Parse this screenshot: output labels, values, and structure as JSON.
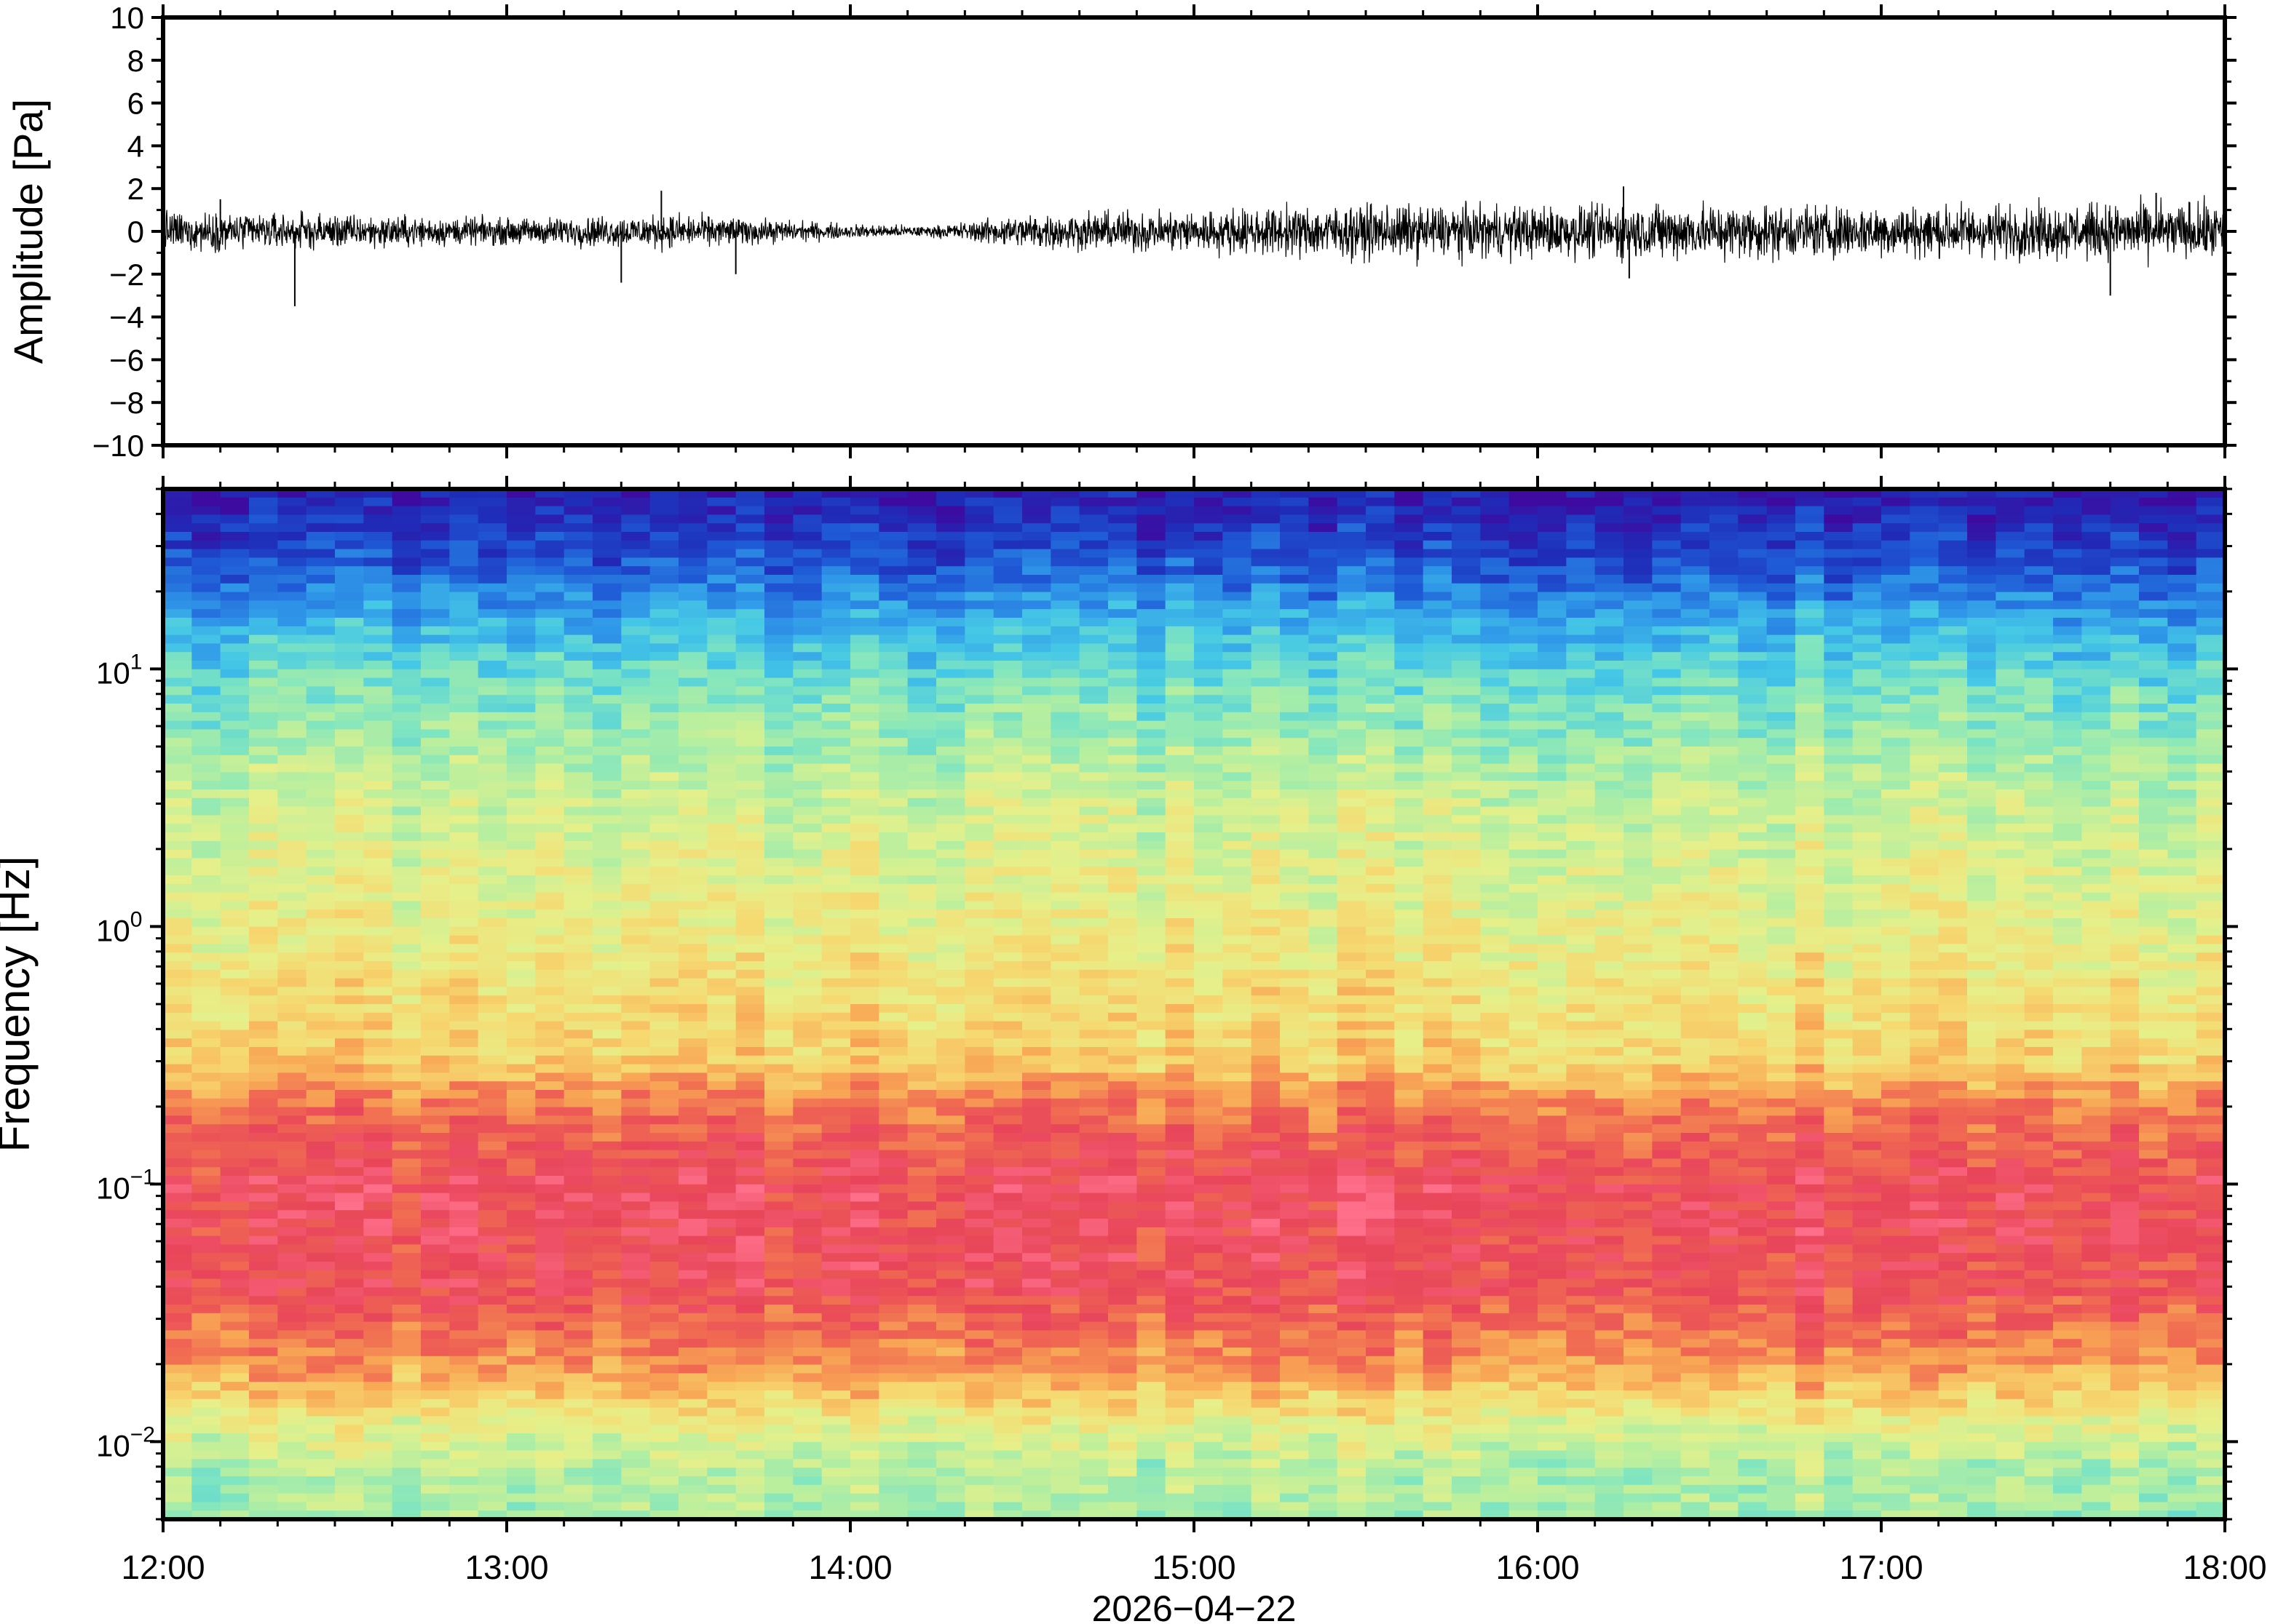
{
  "chart_data": [
    {
      "type": "line",
      "ylabel": "Amplitude [Pa]",
      "ylim": [
        -10,
        10
      ],
      "yticks": [
        -10,
        -8,
        -6,
        -4,
        -2,
        0,
        2,
        4,
        6,
        8,
        10
      ],
      "ytick_labels": [
        "−10",
        "−8",
        "−6",
        "−4",
        "−2",
        "0",
        "2",
        "4",
        "6",
        "8",
        "10"
      ],
      "xlim": [
        "12:00",
        "18:00"
      ],
      "xticks": [
        "12:00",
        "13:00",
        "14:00",
        "15:00",
        "16:00",
        "17:00",
        "18:00"
      ],
      "noise_envelope": {
        "x": [
          "12:00",
          "12:30",
          "13:00",
          "13:30",
          "14:00",
          "14:15",
          "14:30",
          "15:00",
          "15:30",
          "16:00",
          "16:30",
          "17:00",
          "17:30",
          "18:00"
        ],
        "y": [
          0.7,
          0.6,
          0.45,
          0.6,
          0.25,
          0.2,
          0.6,
          0.75,
          0.95,
          0.9,
          1.0,
          0.9,
          0.95,
          1.0
        ]
      },
      "spikes": [
        {
          "x": "12:23",
          "y": -3.5
        },
        {
          "x": "13:20",
          "y": -2.4
        },
        {
          "x": "13:27",
          "y": 1.9
        },
        {
          "x": "13:40",
          "y": -2.0
        },
        {
          "x": "16:15",
          "y": 2.1
        },
        {
          "x": "16:16",
          "y": -2.2
        },
        {
          "x": "17:40",
          "y": -3.0
        },
        {
          "x": "17:48",
          "y": 1.8
        },
        {
          "x": "12:10",
          "y": 1.5
        }
      ]
    },
    {
      "type": "heatmap",
      "ylabel": "Frequency [Hz]",
      "yscale": "log",
      "ylim": [
        0.005,
        50
      ],
      "ytick_labels": [
        {
          "base": "10",
          "exp": "−2",
          "value": 0.01
        },
        {
          "base": "10",
          "exp": "−1",
          "value": 0.1
        },
        {
          "base": "10",
          "exp": "0",
          "value": 1
        },
        {
          "base": "10",
          "exp": "1",
          "value": 10
        }
      ],
      "xlim": [
        "12:00",
        "18:00"
      ],
      "xticks": [
        "12:00",
        "13:00",
        "14:00",
        "15:00",
        "16:00",
        "17:00",
        "18:00"
      ],
      "colormap": [
        "#3d0ba0",
        "#1f2cb8",
        "#1f5bd6",
        "#2f97e8",
        "#45c8e6",
        "#7fe5c0",
        "#b8ef9f",
        "#e6f08a",
        "#f6d870",
        "#f8a855",
        "#f06a52",
        "#e8455a",
        "#ff6f8a"
      ],
      "power_profile": {
        "frequency_hz": [
          0.005,
          0.008,
          0.012,
          0.02,
          0.04,
          0.1,
          0.2,
          0.3,
          1,
          3,
          8,
          15,
          25,
          50
        ],
        "relative_power": [
          0.48,
          0.5,
          0.6,
          0.78,
          0.9,
          0.92,
          0.82,
          0.68,
          0.6,
          0.54,
          0.42,
          0.3,
          0.16,
          0.04
        ]
      }
    }
  ],
  "xaxis": {
    "tick_labels": [
      "12:00",
      "13:00",
      "14:00",
      "15:00",
      "16:00",
      "17:00",
      "18:00"
    ],
    "date_label": "2026−04−22"
  }
}
